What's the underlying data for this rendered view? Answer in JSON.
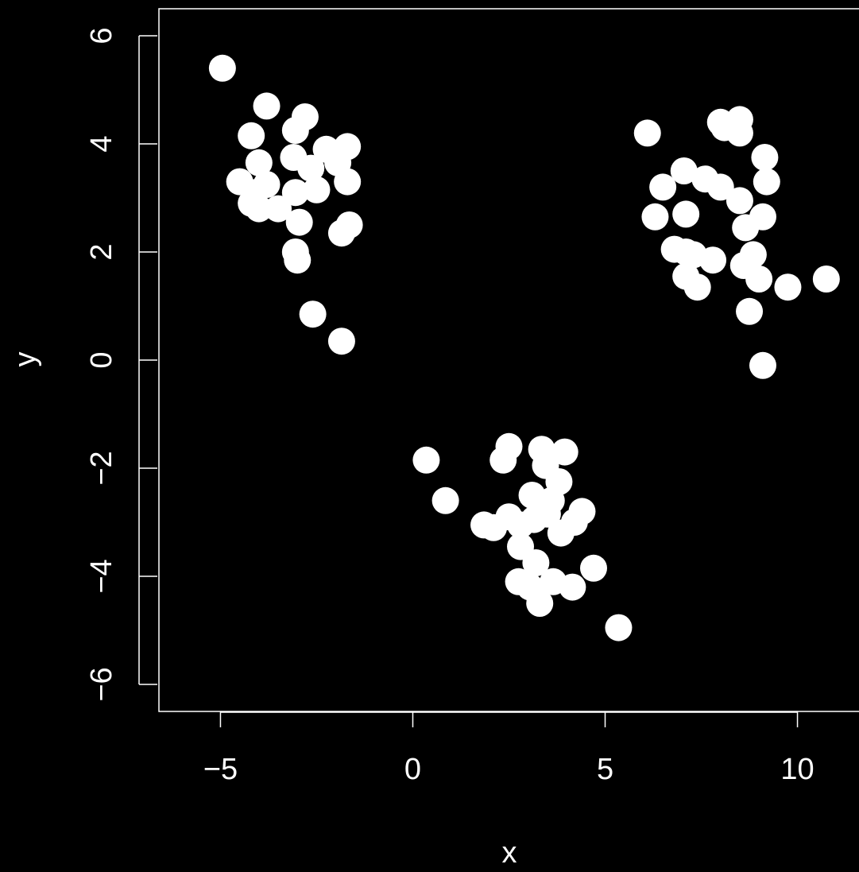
{
  "chart_data": {
    "type": "scatter",
    "title": "",
    "xlabel": "x",
    "ylabel": "y",
    "xlim": [
      -6.6,
      11.6
    ],
    "ylim": [
      -6.5,
      6.5
    ],
    "x_ticks": [
      -5,
      0,
      5,
      10
    ],
    "x_tick_labels": [
      "−5",
      "0",
      "5",
      "10"
    ],
    "y_ticks": [
      -6,
      -4,
      -2,
      0,
      2,
      4,
      6
    ],
    "y_tick_labels": [
      "−6",
      "−4",
      "−2",
      "0",
      "2",
      "4",
      "6"
    ],
    "grid": false,
    "legend": false,
    "colors": {
      "background": "#000000",
      "foreground": "#ffffff",
      "points": "#ffffff"
    },
    "points": [
      [
        -4.95,
        5.4
      ],
      [
        -3.8,
        4.7
      ],
      [
        -2.8,
        4.5
      ],
      [
        -4.2,
        4.15
      ],
      [
        -3.05,
        4.25
      ],
      [
        -2.25,
        3.9
      ],
      [
        -1.7,
        3.95
      ],
      [
        -3.1,
        3.75
      ],
      [
        -4.0,
        3.65
      ],
      [
        -2.65,
        3.55
      ],
      [
        -1.95,
        3.65
      ],
      [
        -4.5,
        3.3
      ],
      [
        -4.1,
        3.1
      ],
      [
        -3.8,
        3.25
      ],
      [
        -2.5,
        3.15
      ],
      [
        -3.05,
        3.1
      ],
      [
        -1.7,
        3.3
      ],
      [
        -4.2,
        2.9
      ],
      [
        -4.0,
        2.8
      ],
      [
        -3.5,
        2.8
      ],
      [
        -2.95,
        2.55
      ],
      [
        -1.65,
        2.5
      ],
      [
        -1.85,
        2.35
      ],
      [
        -3.05,
        2.0
      ],
      [
        -3.0,
        1.85
      ],
      [
        -2.6,
        0.85
      ],
      [
        -1.85,
        0.35
      ],
      [
        6.1,
        4.2
      ],
      [
        8.0,
        4.4
      ],
      [
        8.5,
        4.45
      ],
      [
        8.1,
        4.3
      ],
      [
        8.5,
        4.2
      ],
      [
        9.15,
        3.75
      ],
      [
        7.05,
        3.5
      ],
      [
        7.6,
        3.35
      ],
      [
        8.0,
        3.2
      ],
      [
        9.2,
        3.3
      ],
      [
        6.5,
        3.2
      ],
      [
        8.5,
        2.95
      ],
      [
        6.3,
        2.65
      ],
      [
        7.1,
        2.7
      ],
      [
        9.1,
        2.65
      ],
      [
        8.65,
        2.45
      ],
      [
        6.8,
        2.05
      ],
      [
        7.3,
        1.95
      ],
      [
        7.1,
        2.0
      ],
      [
        7.8,
        1.85
      ],
      [
        8.85,
        1.95
      ],
      [
        8.6,
        1.75
      ],
      [
        7.1,
        1.55
      ],
      [
        9.0,
        1.5
      ],
      [
        10.75,
        1.5
      ],
      [
        7.4,
        1.35
      ],
      [
        9.75,
        1.35
      ],
      [
        8.75,
        0.9
      ],
      [
        9.1,
        -0.1
      ],
      [
        0.35,
        -1.85
      ],
      [
        2.5,
        -1.6
      ],
      [
        3.35,
        -1.65
      ],
      [
        3.95,
        -1.7
      ],
      [
        2.35,
        -1.85
      ],
      [
        3.45,
        -1.95
      ],
      [
        3.8,
        -2.25
      ],
      [
        3.1,
        -2.5
      ],
      [
        3.6,
        -2.6
      ],
      [
        3.5,
        -2.85
      ],
      [
        0.85,
        -2.6
      ],
      [
        4.4,
        -2.8
      ],
      [
        2.5,
        -2.9
      ],
      [
        1.85,
        -3.05
      ],
      [
        2.1,
        -3.1
      ],
      [
        2.8,
        -3.05
      ],
      [
        3.15,
        -2.95
      ],
      [
        3.85,
        -3.2
      ],
      [
        4.2,
        -3.0
      ],
      [
        2.8,
        -3.45
      ],
      [
        3.2,
        -3.75
      ],
      [
        4.7,
        -3.85
      ],
      [
        2.75,
        -4.1
      ],
      [
        3.05,
        -4.2
      ],
      [
        3.65,
        -4.1
      ],
      [
        4.15,
        -4.2
      ],
      [
        3.3,
        -4.5
      ],
      [
        5.35,
        -4.95
      ]
    ]
  }
}
